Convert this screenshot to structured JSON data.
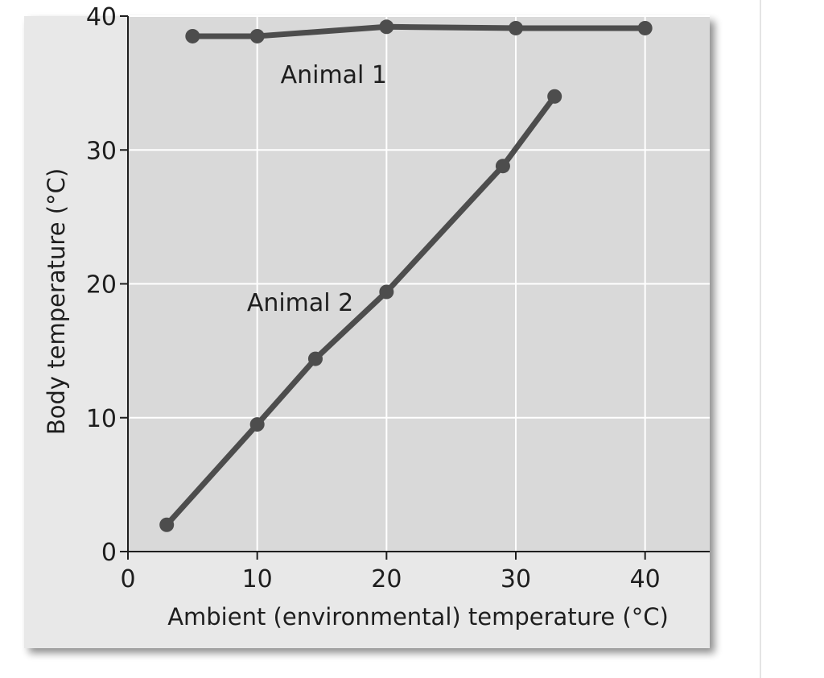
{
  "chart_data": {
    "type": "line",
    "xlabel": "Ambient (environmental) temperature (°C)",
    "ylabel": "Body temperature (°C)",
    "xlim": [
      0,
      45
    ],
    "ylim": [
      0,
      40
    ],
    "x_ticks": [
      0,
      10,
      20,
      30,
      40
    ],
    "y_ticks": [
      0,
      10,
      20,
      30,
      40
    ],
    "grid": true,
    "legend": "none",
    "series": [
      {
        "name": "Animal 1",
        "x": [
          5,
          10,
          20,
          30,
          40
        ],
        "y": [
          38.5,
          38.5,
          39.2,
          39.1,
          39.1
        ]
      },
      {
        "name": "Animal 2",
        "x": [
          3,
          10,
          14.5,
          20,
          29,
          33
        ],
        "y": [
          2,
          9.5,
          14.4,
          19.4,
          28.8,
          34
        ]
      }
    ],
    "colors": {
      "panel": "#e8e8e8",
      "plot_area": "#d9d9d9",
      "grid": "#ffffff",
      "line": "#4d4d4d",
      "axis": "#1e1e1e"
    }
  }
}
